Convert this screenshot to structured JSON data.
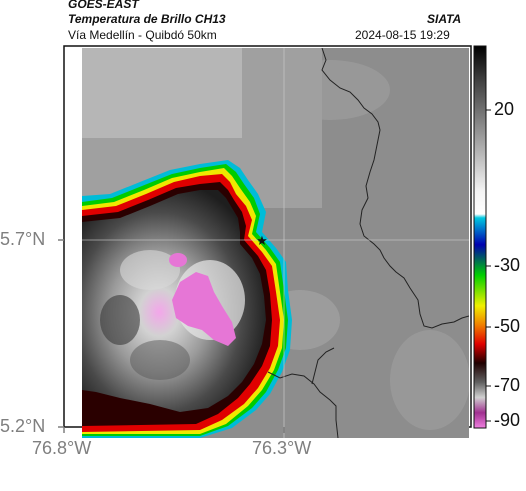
{
  "header": {
    "satellite": "GOES-EAST",
    "product": "Temperatura de Brillo CH13",
    "region": "Vía Medellín - Quibdó 50km",
    "agency": "SIATA",
    "datetime": "2024-08-15 19:29"
  },
  "map": {
    "lat_ticks": [
      "5.7°N",
      "5.2°N"
    ],
    "lon_ticks": [
      "76.8°W",
      "76.3°W"
    ],
    "marker": "star-icon"
  },
  "colorbar": {
    "tick_labels": [
      "20",
      "-30",
      "-50",
      "-70",
      "-90"
    ],
    "colors": [
      "#000000",
      "#ffffff",
      "#00c8e0",
      "#0000b0",
      "#00d000",
      "#f0f000",
      "#f08000",
      "#e00000",
      "#200000",
      "#606060",
      "#d0d0d0",
      "#a03090",
      "#f080e0"
    ]
  }
}
